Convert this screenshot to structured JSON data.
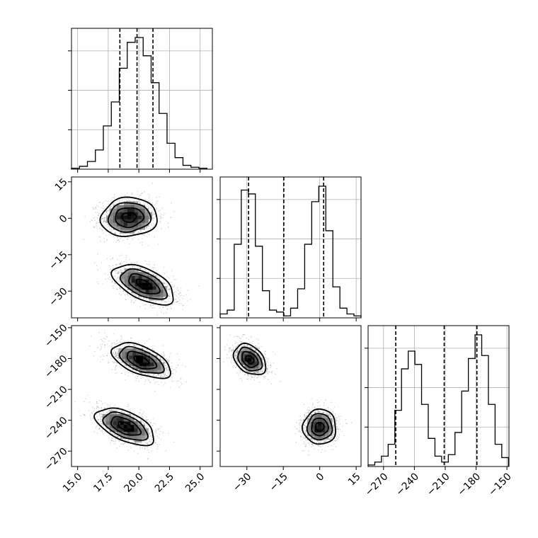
{
  "chart_data": {
    "type": "scatter",
    "kind": "corner plot",
    "title": "",
    "parameters": [
      {
        "label": "",
        "range": [
          14.5,
          26
        ],
        "ticks": [
          15.0,
          17.5,
          20.0,
          22.5,
          25.0
        ],
        "tick_labels": [
          "15.0",
          "17.5",
          "20.0",
          "22.5",
          "25.0"
        ]
      },
      {
        "label": "",
        "range": [
          -41,
          17
        ],
        "ticks": [
          -30,
          -15,
          0,
          15
        ],
        "tick_labels": [
          "−30",
          "−15",
          "0",
          "15"
        ]
      },
      {
        "label": "",
        "range": [
          -285,
          -148
        ],
        "ticks": [
          -270,
          -240,
          -210,
          -180,
          -150
        ],
        "tick_labels": [
          "−270",
          "−240",
          "−210",
          "−180",
          "−150"
        ]
      }
    ],
    "histograms": [
      {
        "parameter": 0,
        "bin_edges": [
          14.5,
          15.15,
          15.8,
          16.45,
          17.1,
          17.75,
          18.4,
          19.05,
          19.7,
          20.35,
          21.0,
          21.65,
          22.3,
          22.95,
          23.6,
          24.25,
          24.9,
          25.55
        ],
        "counts": [
          1,
          3,
          8,
          20,
          45,
          70,
          105,
          132,
          137,
          118,
          90,
          58,
          27,
          12,
          4,
          2,
          1
        ],
        "quantiles": [
          18.45,
          19.85,
          21.15
        ]
      },
      {
        "parameter": 1,
        "bin_edges": [
          -41,
          -38.1,
          -35.2,
          -32.3,
          -29.4,
          -26.5,
          -23.6,
          -20.7,
          -17.8,
          -14.9,
          -12.0,
          -9.1,
          -6.2,
          -3.3,
          -0.4,
          2.5,
          5.4,
          8.3,
          11.2,
          14.1,
          17.0
        ],
        "counts": [
          2,
          4,
          38,
          66,
          64,
          37,
          14,
          4,
          3,
          1,
          5,
          15,
          38,
          60,
          68,
          45,
          16,
          5,
          2,
          1
        ],
        "quantiles": [
          -29.3,
          -14.8,
          1.6
        ]
      },
      {
        "parameter": 2,
        "bin_edges": [
          -285,
          -278.5,
          -272,
          -265.5,
          -259,
          -252.5,
          -246,
          -239.5,
          -233,
          -226.5,
          -220,
          -213.5,
          -207,
          -200.5,
          -194,
          -187.5,
          -181,
          -174.5,
          -168,
          -161.5,
          -155,
          -148.5
        ],
        "counts": [
          1,
          3,
          7,
          15,
          38,
          66,
          78,
          69,
          42,
          19,
          7,
          3,
          8,
          23,
          51,
          73,
          89,
          75,
          42,
          15,
          6
        ],
        "quantiles": [
          -258.1,
          -211.0,
          -179.2
        ]
      }
    ],
    "pairs": [
      {
        "x_param": 0,
        "y_param": 1,
        "modes": [
          {
            "mean": [
              19.2,
              0.4
            ],
            "sd": [
              1.15,
              4.0
            ],
            "rho": 0.05,
            "weight": 0.5
          },
          {
            "mean": [
              20.4,
              -27.2
            ],
            "sd": [
              1.25,
              4.1
            ],
            "rho": -0.55,
            "weight": 0.5
          }
        ]
      },
      {
        "x_param": 0,
        "y_param": 2,
        "modes": [
          {
            "mean": [
              20.2,
              -182.0
            ],
            "sd": [
              1.2,
              8.5
            ],
            "rho": -0.55,
            "weight": 0.5
          },
          {
            "mean": [
              18.9,
              -246.0
            ],
            "sd": [
              1.2,
              9.0
            ],
            "rho": -0.55,
            "weight": 0.5
          }
        ]
      },
      {
        "x_param": 1,
        "y_param": 2,
        "modes": [
          {
            "mean": [
              -28.8,
              -181.0
            ],
            "sd": [
              3.3,
              7.5
            ],
            "rho": -0.35,
            "weight": 0.5
          },
          {
            "mean": [
              0.0,
              -246.5
            ],
            "sd": [
              3.4,
              8.5
            ],
            "rho": 0.0,
            "weight": 0.5
          }
        ]
      }
    ],
    "contour_levels_sigma": [
      0.5,
      1.0,
      1.5,
      2.0
    ],
    "grid": true,
    "legend": "none"
  }
}
